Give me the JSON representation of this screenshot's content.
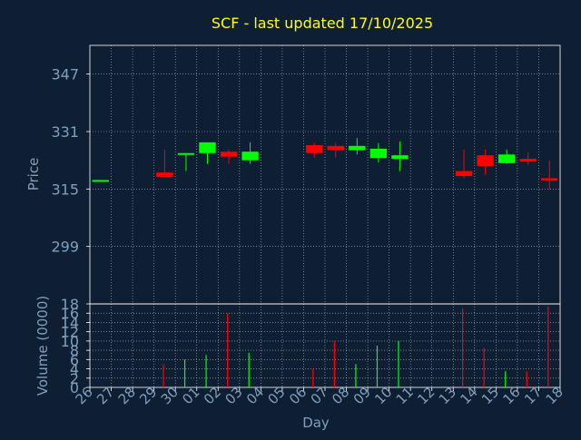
{
  "title": "SCF - last updated 17/10/2025",
  "colors": {
    "background": "#0f1f33",
    "title": "#ffff00",
    "axis_text": "#7f9fbf",
    "grid": "#ffffff",
    "up": "#00ff00",
    "down": "#ff0000"
  },
  "chart_data": [
    {
      "type": "candlestick",
      "panel": "price",
      "title": "SCF - last updated 17/10/2025",
      "ylabel": "Price",
      "ylim": [
        283,
        355
      ],
      "yticks": [
        299,
        315,
        331,
        347
      ],
      "grid": true,
      "x": [
        "26",
        "27",
        "28",
        "29",
        "30",
        "01",
        "02",
        "03",
        "04",
        "05",
        "06",
        "07",
        "08",
        "09",
        "10",
        "11",
        "12",
        "13",
        "14",
        "15",
        "16",
        "17"
      ],
      "candles": [
        {
          "day": "26",
          "open": 317.5,
          "high": 317.5,
          "low": 317.5,
          "close": 317.5,
          "direction": "up"
        },
        {
          "day": "29",
          "open": 319.6,
          "high": 326.0,
          "low": 319.0,
          "close": 318.4,
          "direction": "down"
        },
        {
          "day": "30",
          "open": 324.6,
          "high": 325.0,
          "low": 320.0,
          "close": 325.0,
          "direction": "up"
        },
        {
          "day": "01",
          "open": 325.0,
          "high": 328.0,
          "low": 322.0,
          "close": 328.0,
          "direction": "up"
        },
        {
          "day": "02",
          "open": 325.4,
          "high": 326.0,
          "low": 322.0,
          "close": 324.0,
          "direction": "down"
        },
        {
          "day": "03",
          "open": 323.0,
          "high": 328.0,
          "low": 322.0,
          "close": 325.4,
          "direction": "up"
        },
        {
          "day": "06",
          "open": 327.2,
          "high": 327.8,
          "low": 323.8,
          "close": 325.0,
          "direction": "down"
        },
        {
          "day": "07",
          "open": 327.0,
          "high": 327.8,
          "low": 323.8,
          "close": 325.8,
          "direction": "down"
        },
        {
          "day": "08",
          "open": 325.8,
          "high": 329.2,
          "low": 324.6,
          "close": 327.0,
          "direction": "up"
        },
        {
          "day": "09",
          "open": 323.6,
          "high": 327.8,
          "low": 322.4,
          "close": 326.2,
          "direction": "up"
        },
        {
          "day": "10",
          "open": 323.4,
          "high": 328.2,
          "low": 320.0,
          "close": 324.4,
          "direction": "up"
        },
        {
          "day": "13",
          "open": 320.0,
          "high": 326.0,
          "low": 318.0,
          "close": 318.6,
          "direction": "down"
        },
        {
          "day": "14",
          "open": 324.4,
          "high": 326.0,
          "low": 319.0,
          "close": 321.4,
          "direction": "down"
        },
        {
          "day": "15",
          "open": 322.2,
          "high": 326.0,
          "low": 322.0,
          "close": 324.6,
          "direction": "up"
        },
        {
          "day": "16",
          "open": 323.4,
          "high": 325.2,
          "low": 321.8,
          "close": 322.6,
          "direction": "down"
        },
        {
          "day": "17",
          "open": 318.0,
          "high": 323.0,
          "low": 314.8,
          "close": 317.4,
          "direction": "down"
        }
      ]
    },
    {
      "type": "bar",
      "panel": "volume",
      "ylabel": "Volume (0000)",
      "xlabel": "Day",
      "ylim": [
        0,
        18
      ],
      "yticks": [
        0,
        2,
        4,
        6,
        8,
        10,
        12,
        14,
        16,
        18
      ],
      "grid": true,
      "categories": [
        "26",
        "27",
        "28",
        "29",
        "30",
        "01",
        "02",
        "03",
        "04",
        "05",
        "06",
        "07",
        "08",
        "09",
        "10",
        "11",
        "12",
        "13",
        "14",
        "15",
        "16",
        "17"
      ],
      "values": [
        0,
        0,
        0,
        5,
        6,
        7,
        16,
        7.5,
        0,
        0,
        4,
        10,
        5,
        9,
        10,
        0,
        0,
        17,
        8.5,
        3.5,
        3.5,
        17.5
      ],
      "directions": [
        "up",
        "none",
        "none",
        "down",
        "up",
        "up",
        "down",
        "up",
        "none",
        "none",
        "down",
        "down",
        "up",
        "up",
        "up",
        "none",
        "none",
        "down",
        "down",
        "up",
        "down",
        "down"
      ]
    }
  ]
}
